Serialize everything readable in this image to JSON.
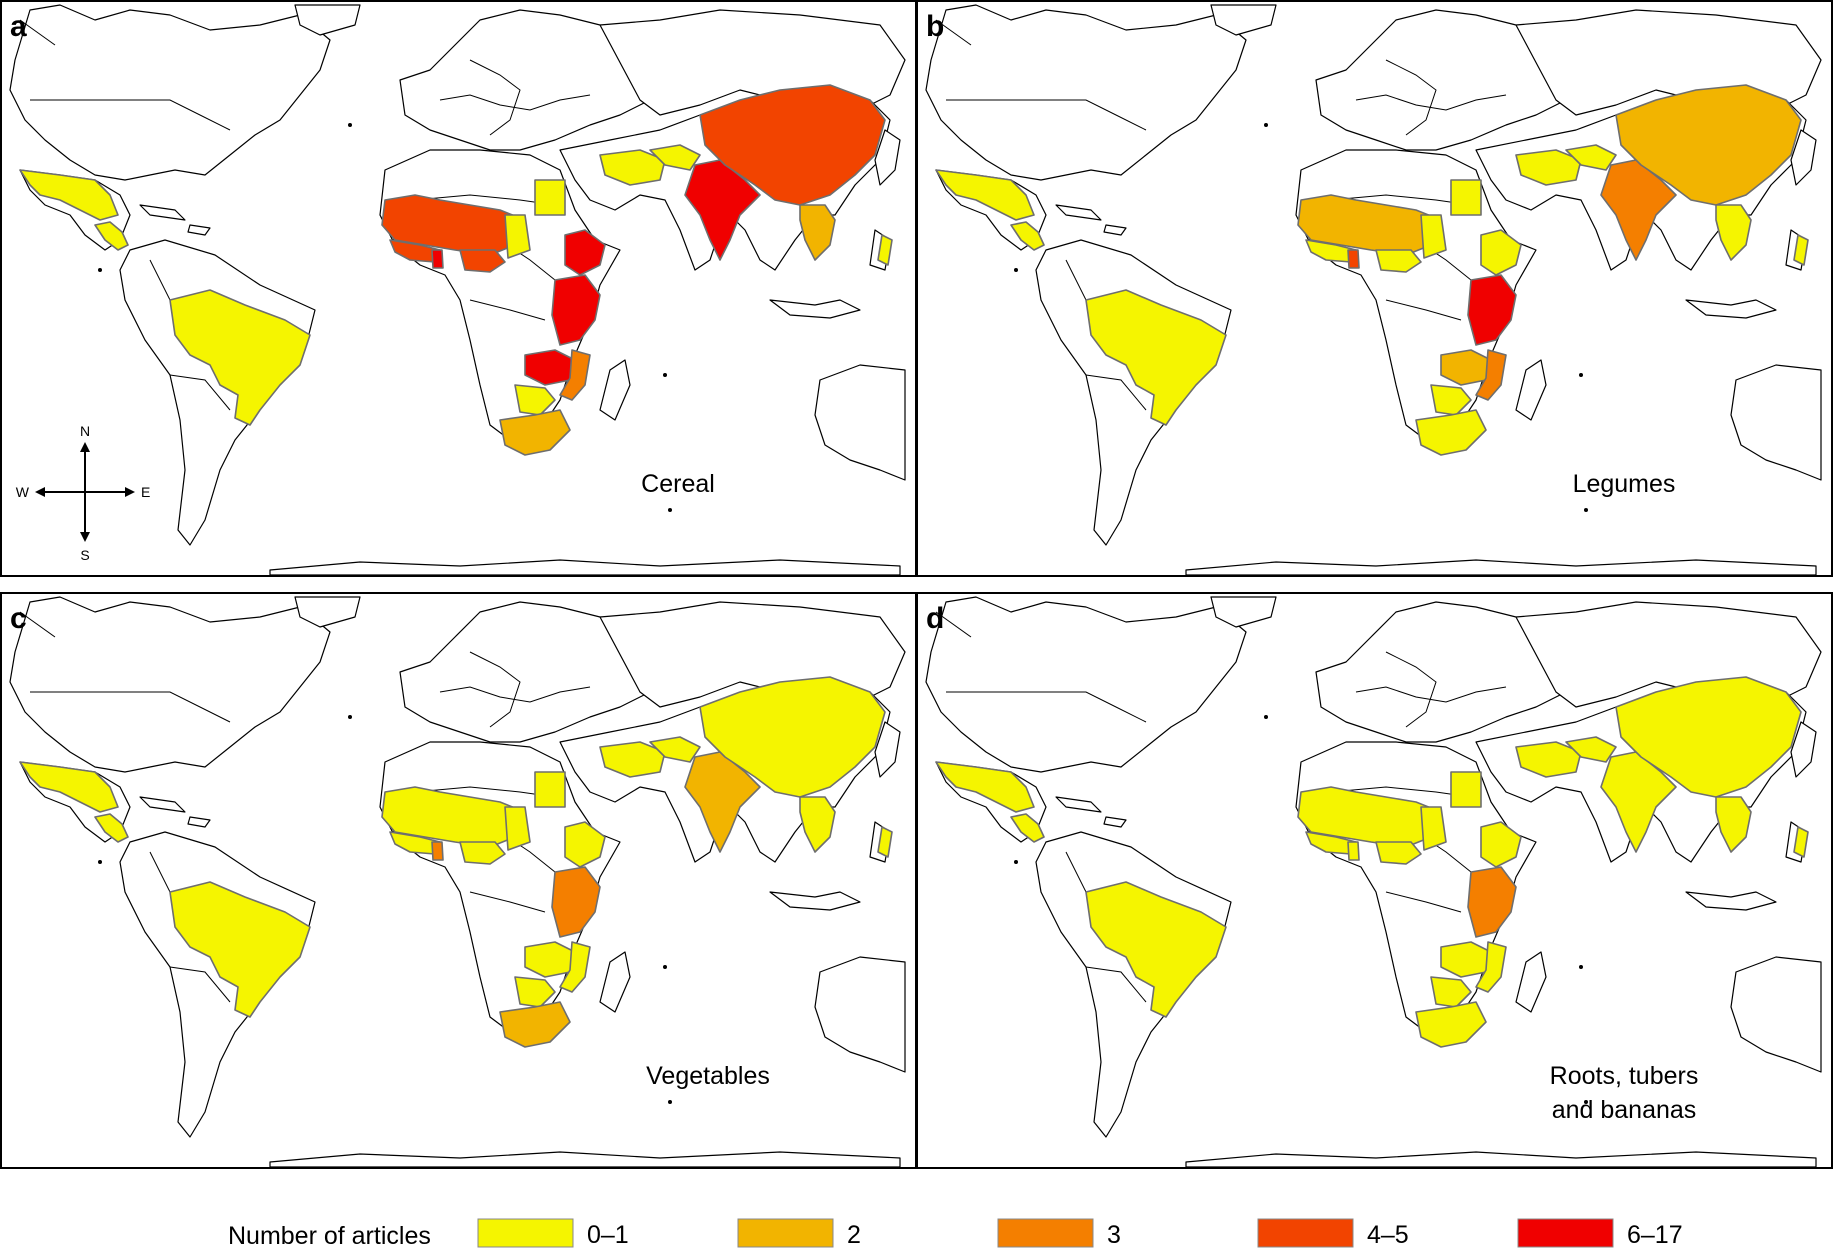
{
  "legend": {
    "title": "Number of articles",
    "classes": [
      {
        "label": "0–1",
        "color": "#f5f500"
      },
      {
        "label": "2",
        "color": "#f2b400"
      },
      {
        "label": "3",
        "color": "#f47f00"
      },
      {
        "label": "4–5",
        "color": "#f24400"
      },
      {
        "label": "6–17",
        "color": "#f00000"
      }
    ]
  },
  "compass": {
    "north": "N",
    "south": "S",
    "west": "W",
    "east": "E"
  },
  "panels": [
    {
      "letter": "a",
      "caption": [
        "Cereal"
      ],
      "countries": {
        "mexico": 0,
        "central-america": 0,
        "brazil": 0,
        "west-africa-sahel": 3,
        "west-africa-coast": 3,
        "ghana": 4,
        "nigeria": 3,
        "niger-chad": 0,
        "egypt": 0,
        "ethiopia": 4,
        "kenya-tanzania": 4,
        "zambia-malawi": 4,
        "mozambique": 2,
        "zimbabwe": 0,
        "south-africa": 1,
        "middle-east": 0,
        "central-asia": 0,
        "india": 4,
        "china": 3,
        "southeast-asia": 1,
        "philippines": 0
      }
    },
    {
      "letter": "b",
      "caption": [
        "Legumes"
      ],
      "countries": {
        "mexico": 0,
        "central-america": 0,
        "brazil": 0,
        "west-africa-sahel": 1,
        "west-africa-coast": 0,
        "ghana": 3,
        "nigeria": 0,
        "niger-chad": 0,
        "egypt": 0,
        "ethiopia": 0,
        "kenya-tanzania": 4,
        "zambia-malawi": 1,
        "mozambique": 2,
        "zimbabwe": 0,
        "south-africa": 0,
        "middle-east": 0,
        "central-asia": 0,
        "india": 2,
        "china": 1,
        "southeast-asia": 0,
        "philippines": 0
      }
    },
    {
      "letter": "c",
      "caption": [
        "Vegetables"
      ],
      "countries": {
        "mexico": 0,
        "central-america": 0,
        "brazil": 0,
        "west-africa-sahel": 0,
        "west-africa-coast": 0,
        "ghana": 2,
        "nigeria": 0,
        "niger-chad": 0,
        "egypt": 0,
        "ethiopia": 0,
        "kenya-tanzania": 2,
        "zambia-malawi": 0,
        "mozambique": 0,
        "zimbabwe": 0,
        "south-africa": 1,
        "middle-east": 0,
        "central-asia": 0,
        "india": 1,
        "china": 0,
        "southeast-asia": 0,
        "philippines": 0
      }
    },
    {
      "letter": "d",
      "caption": [
        "Roots, tubers",
        "and bananas"
      ],
      "countries": {
        "mexico": 0,
        "central-america": 0,
        "brazil": 0,
        "west-africa-sahel": 0,
        "west-africa-coast": 0,
        "ghana": 0,
        "nigeria": 0,
        "niger-chad": 0,
        "egypt": 0,
        "ethiopia": 0,
        "kenya-tanzania": 2,
        "zambia-malawi": 0,
        "mozambique": 0,
        "zimbabwe": 0,
        "south-africa": 0,
        "middle-east": 0,
        "central-asia": 0,
        "india": 0,
        "china": 0,
        "southeast-asia": 0,
        "philippines": 0
      }
    }
  ]
}
